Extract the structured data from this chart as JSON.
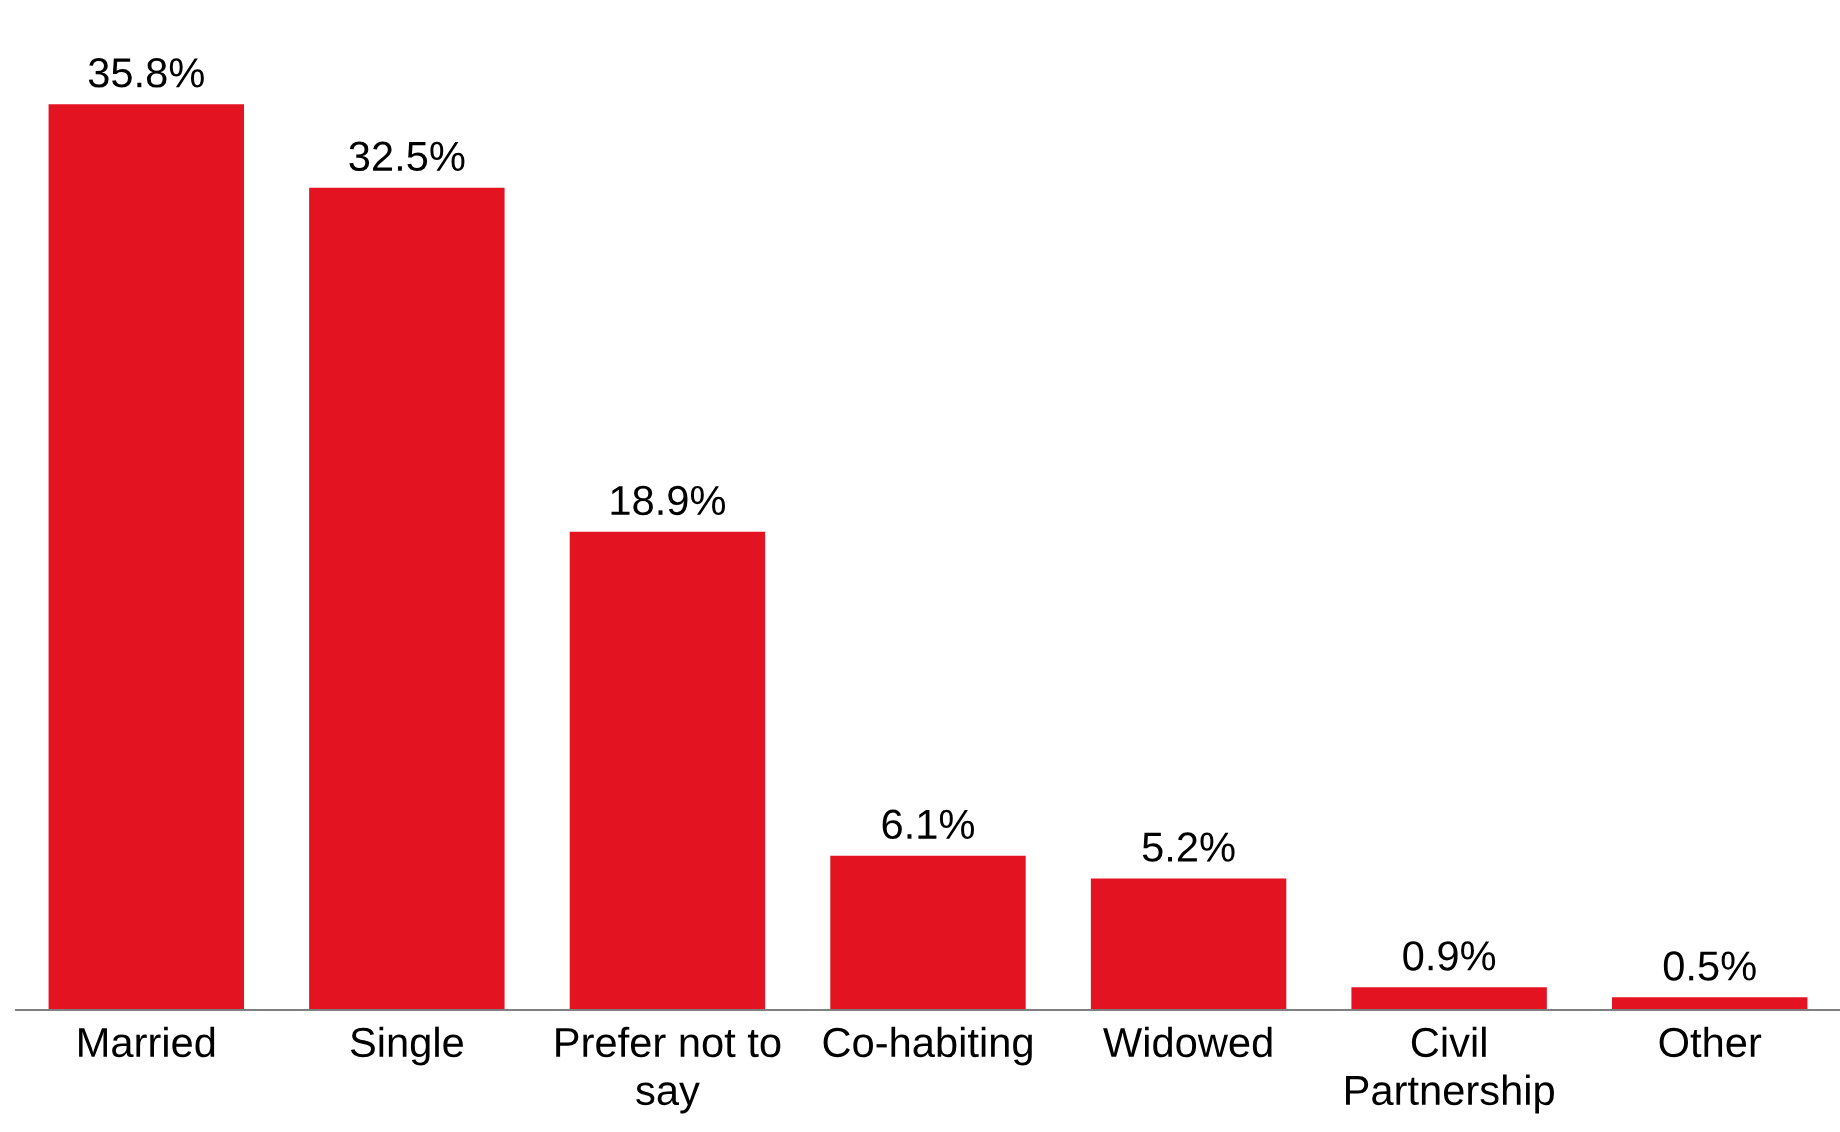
{
  "chart_data": {
    "type": "bar",
    "categories": [
      "Married",
      "Single",
      "Prefer not to\nsay",
      "Co-habiting",
      "Widowed",
      "Civil\nPartnership",
      "Other"
    ],
    "values": [
      35.8,
      32.5,
      18.9,
      6.1,
      5.2,
      0.9,
      0.5
    ],
    "value_labels": [
      "35.8%",
      "32.5%",
      "18.9%",
      "6.1%",
      "5.2%",
      "0.9%",
      "0.5%"
    ],
    "color": "#e31321",
    "grid": false,
    "legend": false
  }
}
